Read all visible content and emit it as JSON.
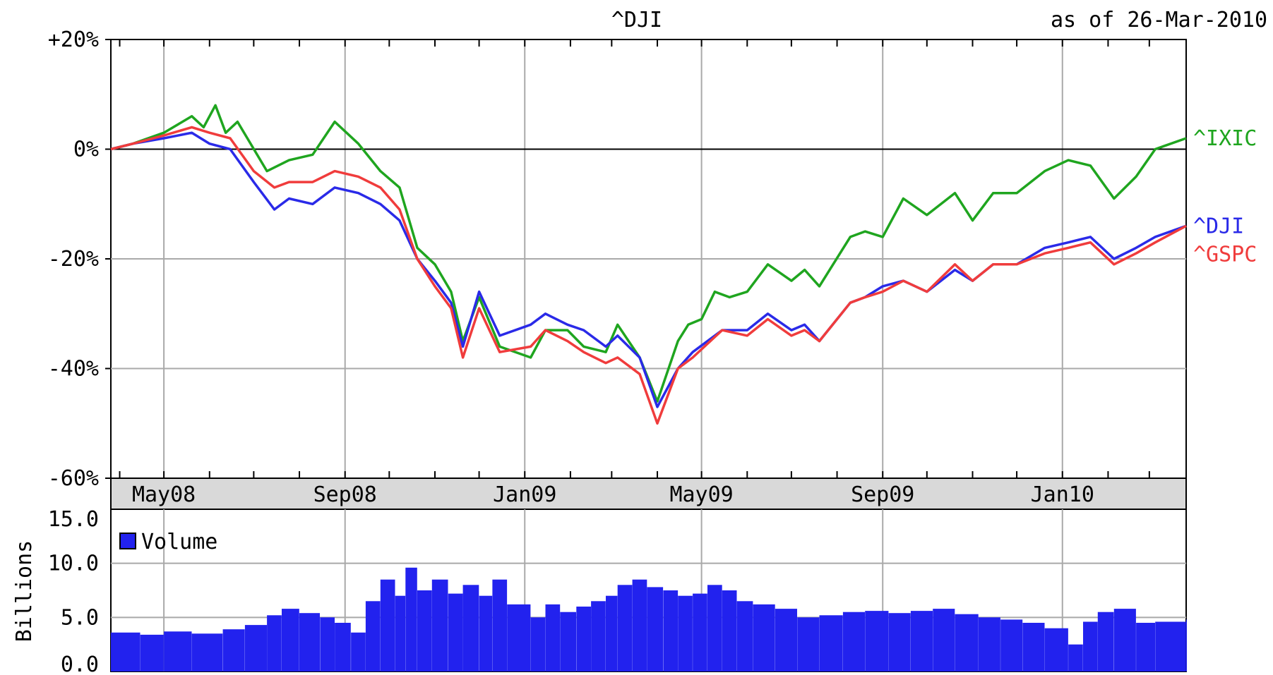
{
  "chart_data": [
    {
      "type": "line",
      "title": "^DJI",
      "subtitle": "as of 26-Mar-2010",
      "ylabel": "",
      "xlabel": "",
      "y_unit": "%",
      "ylim": [
        -60,
        20
      ],
      "y_ticks": [
        20,
        0,
        -20,
        -40,
        -60
      ],
      "y_tick_labels": [
        "+20%",
        "0%",
        "-20%",
        "-40%",
        "-60%"
      ],
      "x_range": [
        "2008-03-26",
        "2010-03-26"
      ],
      "x_ticks": [
        "2008-05-01",
        "2008-09-01",
        "2009-01-01",
        "2009-05-01",
        "2009-09-01",
        "2010-01-01"
      ],
      "x_tick_labels": [
        "May08",
        "Sep08",
        "Jan09",
        "May09",
        "Sep09",
        "Jan10"
      ],
      "grid": true,
      "legend_position": "right",
      "series": [
        {
          "name": "^IXIC",
          "color": "#1fa51f",
          "points": [
            [
              "2008-03-26",
              0
            ],
            [
              "2008-04-10",
              1
            ],
            [
              "2008-05-01",
              3
            ],
            [
              "2008-05-20",
              6
            ],
            [
              "2008-05-28",
              4
            ],
            [
              "2008-06-05",
              8
            ],
            [
              "2008-06-12",
              3
            ],
            [
              "2008-06-20",
              5
            ],
            [
              "2008-07-10",
              -4
            ],
            [
              "2008-07-25",
              -2
            ],
            [
              "2008-08-10",
              -1
            ],
            [
              "2008-08-25",
              5
            ],
            [
              "2008-09-10",
              1
            ],
            [
              "2008-09-25",
              -4
            ],
            [
              "2008-10-08",
              -7
            ],
            [
              "2008-10-20",
              -18
            ],
            [
              "2008-11-01",
              -21
            ],
            [
              "2008-11-12",
              -26
            ],
            [
              "2008-11-20",
              -35
            ],
            [
              "2008-12-01",
              -27
            ],
            [
              "2008-12-15",
              -36
            ],
            [
              "2009-01-05",
              -38
            ],
            [
              "2009-01-15",
              -33
            ],
            [
              "2009-01-30",
              -33
            ],
            [
              "2009-02-10",
              -36
            ],
            [
              "2009-02-25",
              -37
            ],
            [
              "2009-03-05",
              -32
            ],
            [
              "2009-03-20",
              -38
            ],
            [
              "2009-04-01",
              -46
            ],
            [
              "2009-04-15",
              -35
            ],
            [
              "2009-04-22",
              -32
            ],
            [
              "2009-05-01",
              -31
            ],
            [
              "2009-05-10",
              -26
            ],
            [
              "2009-05-20",
              -27
            ],
            [
              "2009-06-01",
              -26
            ],
            [
              "2009-06-15",
              -21
            ],
            [
              "2009-07-01",
              -24
            ],
            [
              "2009-07-10",
              -22
            ],
            [
              "2009-07-20",
              -25
            ],
            [
              "2009-08-10",
              -16
            ],
            [
              "2009-08-20",
              -15
            ],
            [
              "2009-09-01",
              -16
            ],
            [
              "2009-09-15",
              -9
            ],
            [
              "2009-10-01",
              -12
            ],
            [
              "2009-10-20",
              -8
            ],
            [
              "2009-11-01",
              -13
            ],
            [
              "2009-11-15",
              -8
            ],
            [
              "2009-12-01",
              -8
            ],
            [
              "2009-12-20",
              -4
            ],
            [
              "2010-01-05",
              -2
            ],
            [
              "2010-01-20",
              -3
            ],
            [
              "2010-02-05",
              -9
            ],
            [
              "2010-02-20",
              -5
            ],
            [
              "2010-03-05",
              0
            ],
            [
              "2010-03-26",
              2
            ]
          ]
        },
        {
          "name": "^DJI",
          "color": "#2a2ae8",
          "points": [
            [
              "2008-03-26",
              0
            ],
            [
              "2008-04-10",
              1
            ],
            [
              "2008-05-01",
              2
            ],
            [
              "2008-05-20",
              3
            ],
            [
              "2008-06-01",
              1
            ],
            [
              "2008-06-15",
              0
            ],
            [
              "2008-07-01",
              -6
            ],
            [
              "2008-07-15",
              -11
            ],
            [
              "2008-07-25",
              -9
            ],
            [
              "2008-08-10",
              -10
            ],
            [
              "2008-08-25",
              -7
            ],
            [
              "2008-09-10",
              -8
            ],
            [
              "2008-09-25",
              -10
            ],
            [
              "2008-10-08",
              -13
            ],
            [
              "2008-10-20",
              -20
            ],
            [
              "2008-11-01",
              -24
            ],
            [
              "2008-11-12",
              -28
            ],
            [
              "2008-11-20",
              -36
            ],
            [
              "2008-12-01",
              -26
            ],
            [
              "2008-12-15",
              -34
            ],
            [
              "2009-01-05",
              -32
            ],
            [
              "2009-01-15",
              -30
            ],
            [
              "2009-01-30",
              -32
            ],
            [
              "2009-02-10",
              -33
            ],
            [
              "2009-02-25",
              -36
            ],
            [
              "2009-03-05",
              -34
            ],
            [
              "2009-03-20",
              -38
            ],
            [
              "2009-04-01",
              -47
            ],
            [
              "2009-04-15",
              -40
            ],
            [
              "2009-04-25",
              -37
            ],
            [
              "2009-05-15",
              -33
            ],
            [
              "2009-06-01",
              -33
            ],
            [
              "2009-06-15",
              -30
            ],
            [
              "2009-07-01",
              -33
            ],
            [
              "2009-07-10",
              -32
            ],
            [
              "2009-07-20",
              -35
            ],
            [
              "2009-08-10",
              -28
            ],
            [
              "2009-08-20",
              -27
            ],
            [
              "2009-09-01",
              -25
            ],
            [
              "2009-09-15",
              -24
            ],
            [
              "2009-10-01",
              -26
            ],
            [
              "2009-10-20",
              -22
            ],
            [
              "2009-11-01",
              -24
            ],
            [
              "2009-11-15",
              -21
            ],
            [
              "2009-12-01",
              -21
            ],
            [
              "2009-12-20",
              -18
            ],
            [
              "2010-01-05",
              -17
            ],
            [
              "2010-01-20",
              -16
            ],
            [
              "2010-02-05",
              -20
            ],
            [
              "2010-02-20",
              -18
            ],
            [
              "2010-03-05",
              -16
            ],
            [
              "2010-03-26",
              -14
            ]
          ]
        },
        {
          "name": "^GSPC",
          "color": "#f03c3c",
          "points": [
            [
              "2008-03-26",
              0
            ],
            [
              "2008-04-10",
              1
            ],
            [
              "2008-05-01",
              2.5
            ],
            [
              "2008-05-20",
              4
            ],
            [
              "2008-06-01",
              3
            ],
            [
              "2008-06-15",
              2
            ],
            [
              "2008-07-01",
              -4
            ],
            [
              "2008-07-15",
              -7
            ],
            [
              "2008-07-25",
              -6
            ],
            [
              "2008-08-10",
              -6
            ],
            [
              "2008-08-25",
              -4
            ],
            [
              "2008-09-10",
              -5
            ],
            [
              "2008-09-25",
              -7
            ],
            [
              "2008-10-08",
              -11
            ],
            [
              "2008-10-20",
              -20
            ],
            [
              "2008-11-01",
              -25
            ],
            [
              "2008-11-12",
              -29
            ],
            [
              "2008-11-20",
              -38
            ],
            [
              "2008-12-01",
              -29
            ],
            [
              "2008-12-15",
              -37
            ],
            [
              "2009-01-05",
              -36
            ],
            [
              "2009-01-15",
              -33
            ],
            [
              "2009-01-30",
              -35
            ],
            [
              "2009-02-10",
              -37
            ],
            [
              "2009-02-25",
              -39
            ],
            [
              "2009-03-05",
              -38
            ],
            [
              "2009-03-20",
              -41
            ],
            [
              "2009-04-01",
              -50
            ],
            [
              "2009-04-15",
              -40
            ],
            [
              "2009-04-25",
              -38
            ],
            [
              "2009-05-15",
              -33
            ],
            [
              "2009-06-01",
              -34
            ],
            [
              "2009-06-15",
              -31
            ],
            [
              "2009-07-01",
              -34
            ],
            [
              "2009-07-10",
              -33
            ],
            [
              "2009-07-20",
              -35
            ],
            [
              "2009-08-10",
              -28
            ],
            [
              "2009-08-20",
              -27
            ],
            [
              "2009-09-01",
              -26
            ],
            [
              "2009-09-15",
              -24
            ],
            [
              "2009-10-01",
              -26
            ],
            [
              "2009-10-20",
              -21
            ],
            [
              "2009-11-01",
              -24
            ],
            [
              "2009-11-15",
              -21
            ],
            [
              "2009-12-01",
              -21
            ],
            [
              "2009-12-20",
              -19
            ],
            [
              "2010-01-05",
              -18
            ],
            [
              "2010-01-20",
              -17
            ],
            [
              "2010-02-05",
              -21
            ],
            [
              "2010-02-20",
              -19
            ],
            [
              "2010-03-05",
              -17
            ],
            [
              "2010-03-26",
              -14
            ]
          ]
        }
      ]
    },
    {
      "type": "bar",
      "title": "",
      "ylabel": "Billions",
      "ylim": [
        0,
        15
      ],
      "y_ticks": [
        15,
        10,
        5,
        0
      ],
      "y_tick_labels": [
        "15.0",
        "10.0",
        "5.0",
        "0.0"
      ],
      "x_range": [
        "2008-03-26",
        "2010-03-26"
      ],
      "grid": true,
      "legend_position": "top-left",
      "series": [
        {
          "name": "Volume",
          "color": "#2222ee",
          "points": [
            [
              "2008-03-26",
              3.6
            ],
            [
              "2008-04-15",
              3.4
            ],
            [
              "2008-05-01",
              3.7
            ],
            [
              "2008-05-20",
              3.5
            ],
            [
              "2008-06-10",
              3.9
            ],
            [
              "2008-06-25",
              4.3
            ],
            [
              "2008-07-10",
              5.2
            ],
            [
              "2008-07-20",
              5.8
            ],
            [
              "2008-08-01",
              5.4
            ],
            [
              "2008-08-15",
              5.0
            ],
            [
              "2008-08-25",
              4.5
            ],
            [
              "2008-09-05",
              3.6
            ],
            [
              "2008-09-15",
              6.5
            ],
            [
              "2008-09-25",
              8.5
            ],
            [
              "2008-10-05",
              7.0
            ],
            [
              "2008-10-12",
              9.6
            ],
            [
              "2008-10-20",
              7.5
            ],
            [
              "2008-10-30",
              8.5
            ],
            [
              "2008-11-10",
              7.2
            ],
            [
              "2008-11-20",
              8.0
            ],
            [
              "2008-12-01",
              7.0
            ],
            [
              "2008-12-10",
              8.5
            ],
            [
              "2008-12-20",
              6.2
            ],
            [
              "2009-01-05",
              5.0
            ],
            [
              "2009-01-15",
              6.2
            ],
            [
              "2009-01-25",
              5.5
            ],
            [
              "2009-02-05",
              6.0
            ],
            [
              "2009-02-15",
              6.5
            ],
            [
              "2009-02-25",
              7.0
            ],
            [
              "2009-03-05",
              8.0
            ],
            [
              "2009-03-15",
              8.5
            ],
            [
              "2009-03-25",
              7.8
            ],
            [
              "2009-04-05",
              7.5
            ],
            [
              "2009-04-15",
              7.0
            ],
            [
              "2009-04-25",
              7.2
            ],
            [
              "2009-05-05",
              8.0
            ],
            [
              "2009-05-15",
              7.5
            ],
            [
              "2009-05-25",
              6.5
            ],
            [
              "2009-06-05",
              6.2
            ],
            [
              "2009-06-20",
              5.8
            ],
            [
              "2009-07-05",
              5.0
            ],
            [
              "2009-07-20",
              5.2
            ],
            [
              "2009-08-05",
              5.5
            ],
            [
              "2009-08-20",
              5.6
            ],
            [
              "2009-09-05",
              5.4
            ],
            [
              "2009-09-20",
              5.6
            ],
            [
              "2009-10-05",
              5.8
            ],
            [
              "2009-10-20",
              5.3
            ],
            [
              "2009-11-05",
              5.0
            ],
            [
              "2009-11-20",
              4.8
            ],
            [
              "2009-12-05",
              4.5
            ],
            [
              "2009-12-20",
              4.0
            ],
            [
              "2010-01-05",
              2.5
            ],
            [
              "2010-01-15",
              4.6
            ],
            [
              "2010-01-25",
              5.5
            ],
            [
              "2010-02-05",
              5.8
            ],
            [
              "2010-02-20",
              4.5
            ],
            [
              "2010-03-05",
              4.6
            ],
            [
              "2010-03-26",
              4.8
            ]
          ]
        }
      ]
    }
  ]
}
